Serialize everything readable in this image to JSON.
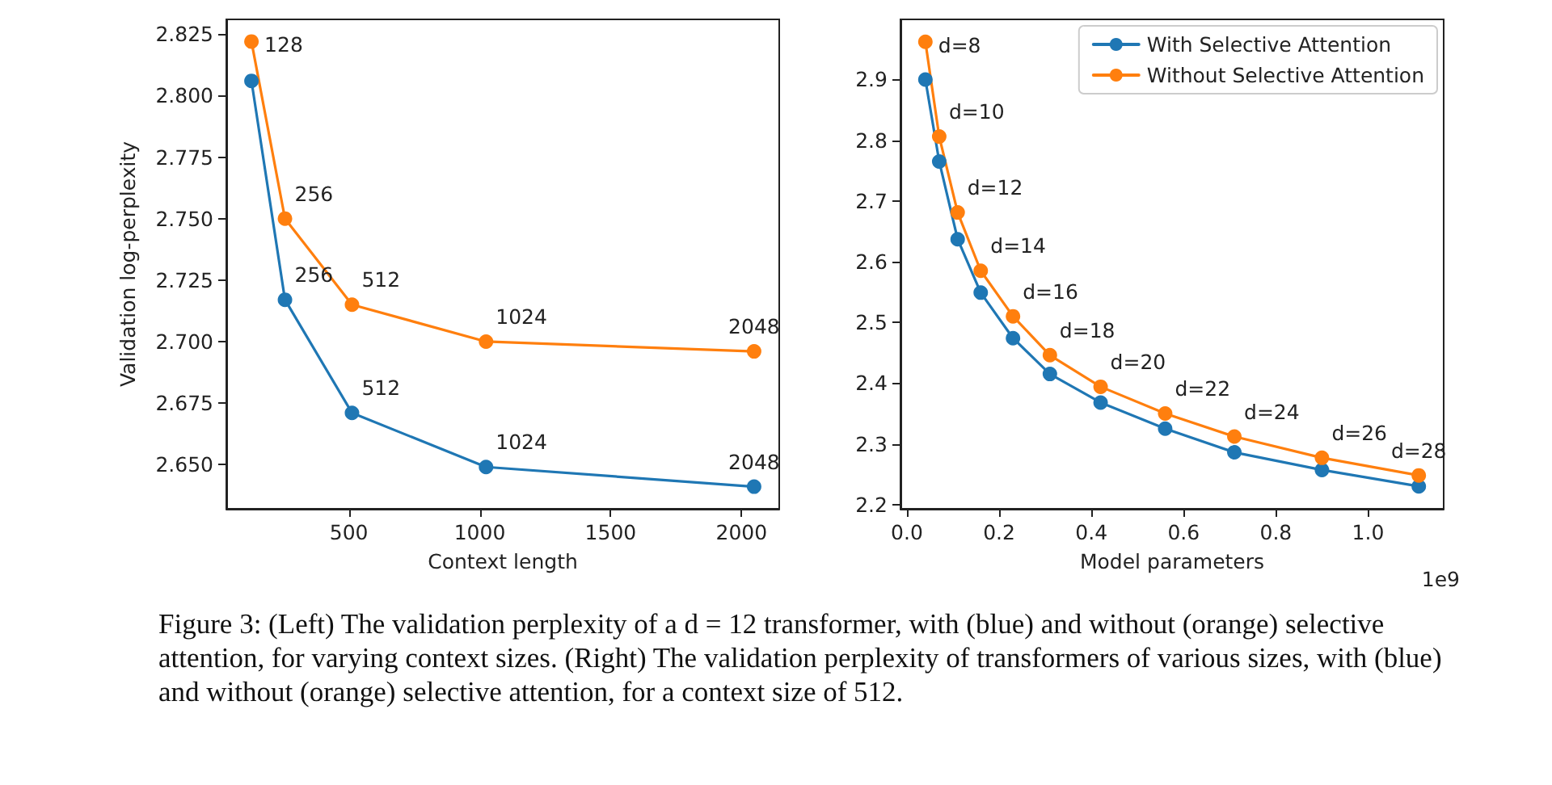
{
  "chart_data": [
    {
      "type": "line",
      "xlabel": "Context length",
      "ylabel": "Validation log-perplexity",
      "x": [
        128,
        256,
        512,
        1024,
        2048
      ],
      "series": [
        {
          "color": "#1f77b4",
          "values": [
            2.806,
            2.717,
            2.671,
            2.649,
            2.641
          ]
        },
        {
          "color": "#ff7f0e",
          "values": [
            2.822,
            2.75,
            2.715,
            2.7,
            2.696
          ]
        }
      ],
      "annotations": [
        {
          "text": "256",
          "x": 256,
          "y": 2.717
        },
        {
          "text": "512",
          "x": 512,
          "y": 2.671
        },
        {
          "text": "1024",
          "x": 1024,
          "y": 2.649
        },
        {
          "text": "2048",
          "x": 2048,
          "y": 2.641
        },
        {
          "text": "128",
          "x": 128,
          "y": 2.822
        },
        {
          "text": "256",
          "x": 256,
          "y": 2.75
        },
        {
          "text": "512",
          "x": 512,
          "y": 2.715
        },
        {
          "text": "1024",
          "x": 1024,
          "y": 2.7
        },
        {
          "text": "2048",
          "x": 2048,
          "y": 2.696
        }
      ],
      "xlim": [
        32,
        2144
      ],
      "xticks": [
        500,
        1000,
        1500,
        2000
      ],
      "ylim": [
        2.632,
        2.831
      ],
      "yticks": [
        {
          "value": 2.65,
          "label": "2.650"
        },
        {
          "value": 2.675,
          "label": "2.675"
        },
        {
          "value": 2.7,
          "label": "2.700"
        },
        {
          "value": 2.725,
          "label": "2.725"
        },
        {
          "value": 2.75,
          "label": "2.750"
        },
        {
          "value": 2.775,
          "label": "2.775"
        },
        {
          "value": 2.8,
          "label": "2.800"
        },
        {
          "value": 2.825,
          "label": "2.825"
        }
      ],
      "grid": false,
      "legend": false,
      "marker": "circle",
      "line_style": "solid"
    },
    {
      "type": "line",
      "xlabel": "Model parameters",
      "x": [
        0.04,
        0.07,
        0.11,
        0.16,
        0.23,
        0.31,
        0.42,
        0.56,
        0.71,
        0.9,
        1.11
      ],
      "series": [
        {
          "name": "With Selective Attention",
          "color": "#1f77b4",
          "values": [
            2.9,
            2.765,
            2.637,
            2.549,
            2.474,
            2.415,
            2.368,
            2.325,
            2.286,
            2.257,
            2.23
          ]
        },
        {
          "name": "Without Selective Attention",
          "color": "#ff7f0e",
          "values": [
            2.962,
            2.806,
            2.681,
            2.585,
            2.51,
            2.446,
            2.394,
            2.35,
            2.312,
            2.277,
            2.248
          ]
        }
      ],
      "annotations": [
        "1e9",
        {
          "text": "d=8",
          "x": 0.04,
          "y": 2.962
        },
        {
          "text": "d=10",
          "x": 0.07,
          "y": 2.806
        },
        {
          "text": "d=12",
          "x": 0.11,
          "y": 2.681
        },
        {
          "text": "d=14",
          "x": 0.16,
          "y": 2.585
        },
        {
          "text": "d=16",
          "x": 0.23,
          "y": 2.51
        },
        {
          "text": "d=18",
          "x": 0.31,
          "y": 2.446
        },
        {
          "text": "d=20",
          "x": 0.42,
          "y": 2.394
        },
        {
          "text": "d=22",
          "x": 0.56,
          "y": 2.35
        },
        {
          "text": "d=24",
          "x": 0.71,
          "y": 2.312
        },
        {
          "text": "d=26",
          "x": 0.9,
          "y": 2.277
        },
        {
          "text": "d=28",
          "x": 1.11,
          "y": 2.248
        }
      ],
      "xlim": [
        -0.014,
        1.164
      ],
      "xticks": [
        {
          "value": 0,
          "label": "0.0"
        },
        0.2,
        0.4,
        0.6,
        0.8,
        {
          "value": 1,
          "label": "1.0"
        }
      ],
      "ylim": [
        2.193,
        2.999
      ],
      "yticks": [
        2.2,
        2.3,
        2.4,
        2.5,
        2.6,
        2.7,
        2.8,
        2.9
      ],
      "grid": false,
      "legend": "top right",
      "marker": "circle",
      "line_style": "solid"
    },
    {
      "type": "other",
      "annotations": [
        "Figure 3: (Left) The validation perplexity of a d = 12 transformer, with (blue) and without (orange) selective attention, for varying context sizes. (Right) The validation perplexity of transformers of various sizes, with (blue) and without (orange) selective attention, for a context size of 512."
      ]
    }
  ]
}
